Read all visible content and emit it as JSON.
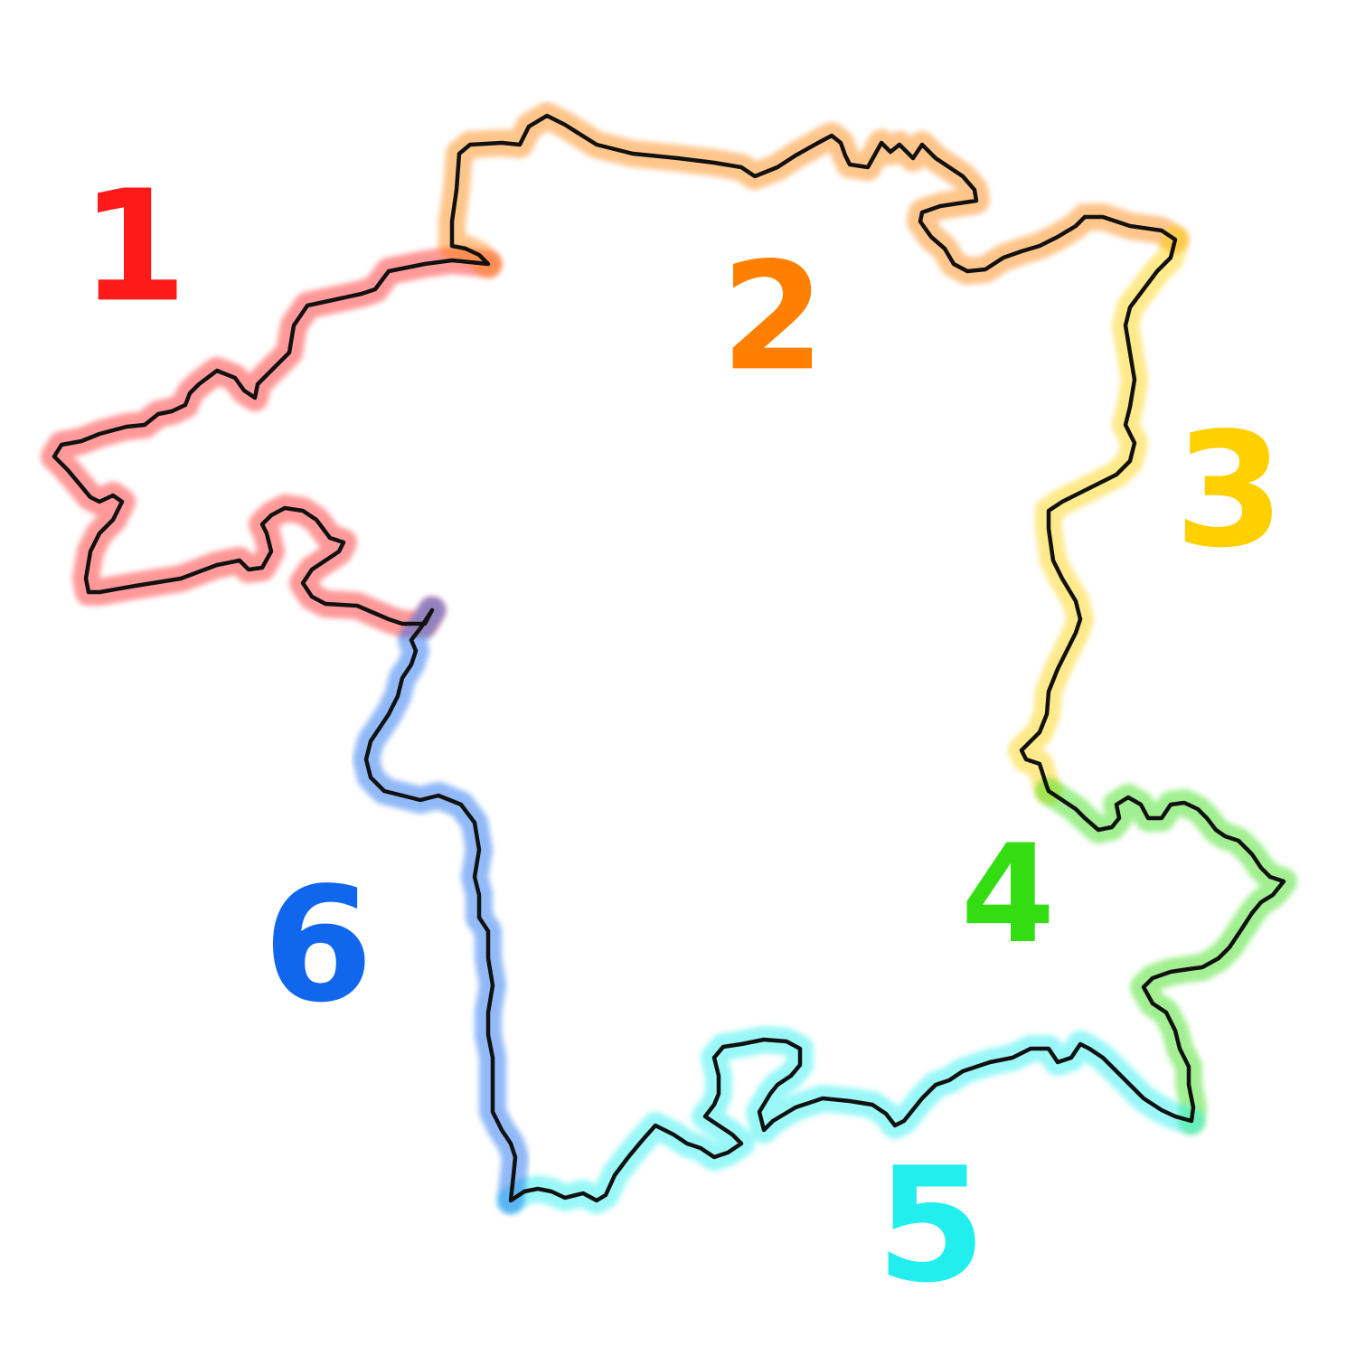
{
  "segments": [
    {
      "id": "1",
      "label": "1",
      "color": "#ff1a1a"
    },
    {
      "id": "2",
      "label": "2",
      "color": "#ff8000"
    },
    {
      "id": "3",
      "label": "3",
      "color": "#ffd000"
    },
    {
      "id": "4",
      "label": "4",
      "color": "#33dd11"
    },
    {
      "id": "5",
      "label": "5",
      "color": "#22eeee"
    },
    {
      "id": "6",
      "label": "6",
      "color": "#1166ee"
    }
  ],
  "outline_color": "#111111",
  "background": "#ffffff"
}
